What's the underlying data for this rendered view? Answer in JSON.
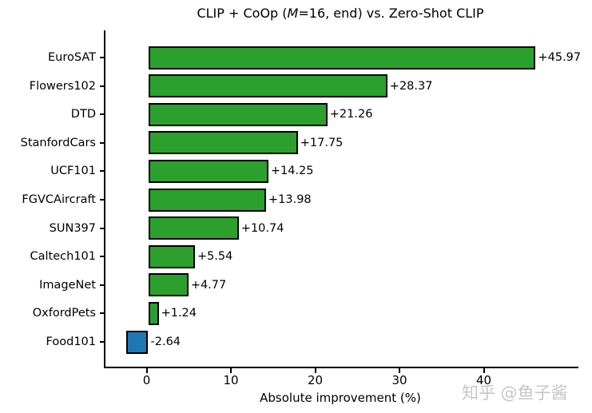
{
  "title_parts": {
    "pre": "CLIP + CoOp (",
    "m": "M",
    "post": "=16, end) vs. Zero-Shot CLIP"
  },
  "watermark": "知乎 @鱼子酱",
  "chart_data": {
    "type": "bar",
    "orientation": "horizontal",
    "title": "CLIP + CoOp (M=16, end) vs. Zero-Shot CLIP",
    "xlabel": "Absolute improvement (%)",
    "ylabel": "",
    "categories": [
      "EuroSAT",
      "Flowers102",
      "DTD",
      "StanfordCars",
      "UCF101",
      "FGVCAircraft",
      "SUN397",
      "Caltech101",
      "ImageNet",
      "OxfordPets",
      "Food101"
    ],
    "values": [
      45.97,
      28.37,
      21.26,
      17.75,
      14.25,
      13.98,
      10.74,
      5.54,
      4.77,
      1.24,
      -2.64
    ],
    "bar_labels": [
      "+45.97",
      "+28.37",
      "+21.26",
      "+17.75",
      "+14.25",
      "+13.98",
      "+10.74",
      "+5.54",
      "+4.77",
      "+1.24",
      "-2.64"
    ],
    "xticks": [
      0,
      10,
      20,
      30,
      40
    ],
    "xlim": [
      -5.1,
      51.0
    ],
    "grid": false,
    "legend": null,
    "positive_color": "#2ca02c",
    "negative_color": "#1f77b4",
    "bar_edge_color": "#000000"
  }
}
